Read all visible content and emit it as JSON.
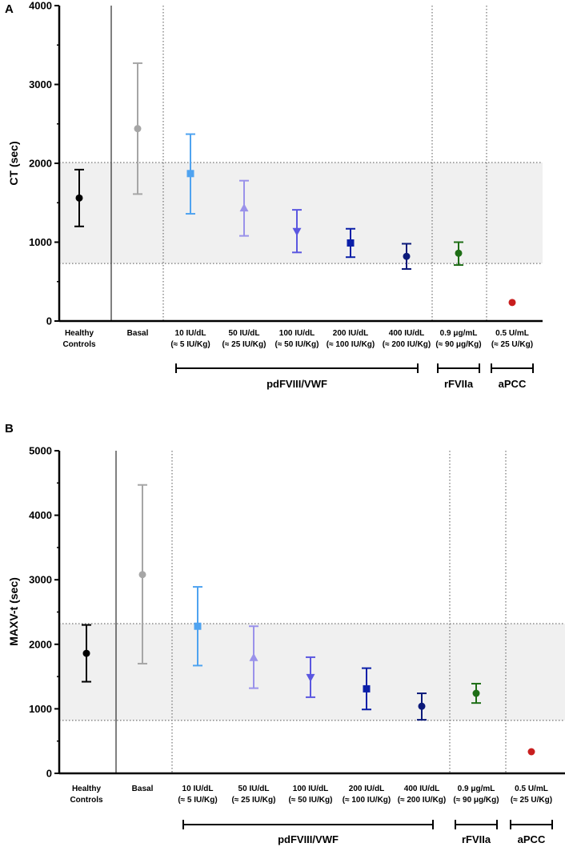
{
  "chart_data": [
    {
      "type": "scatter",
      "panel_label": "A",
      "ylabel": "CT (sec)",
      "ylim": [
        0,
        4000
      ],
      "yticks": [
        0,
        1000,
        2000,
        3000,
        4000
      ],
      "reference_band": [
        730,
        2010
      ],
      "categories": [
        [
          "Healthy",
          "Controls"
        ],
        [
          "Basal"
        ],
        [
          "10 IU/dL",
          "(≈ 5 IU/Kg)"
        ],
        [
          "50 IU/dL",
          "(≈ 25 IU/Kg)"
        ],
        [
          "100 IU/dL",
          "(≈ 50 IU/Kg)"
        ],
        [
          "200 IU/dL",
          "(≈ 100 IU/Kg)"
        ],
        [
          "400 IU/dL",
          "(≈ 200 IU/Kg)"
        ],
        [
          "0.9 μg/mL",
          "(≈ 90 μg/Kg)"
        ],
        [
          "0.5 U/mL",
          "(≈ 25 U/Kg)"
        ]
      ],
      "series": [
        {
          "name": "Healthy Controls",
          "marker": "circle",
          "color": "#000000",
          "value": 1560,
          "low": 1200,
          "high": 1920
        },
        {
          "name": "Basal",
          "marker": "circle",
          "color": "#a6a6a6",
          "value": 2440,
          "low": 1610,
          "high": 3270
        },
        {
          "name": "10 IU/dL",
          "marker": "square",
          "color": "#4fa3f0",
          "value": 1870,
          "low": 1360,
          "high": 2370
        },
        {
          "name": "50 IU/dL",
          "marker": "triangle-up",
          "color": "#9a92ea",
          "value": 1430,
          "low": 1080,
          "high": 1780
        },
        {
          "name": "100 IU/dL",
          "marker": "triangle-down",
          "color": "#5b57e0",
          "value": 1140,
          "low": 870,
          "high": 1410
        },
        {
          "name": "200 IU/dL",
          "marker": "square",
          "color": "#0b1fa8",
          "value": 990,
          "low": 810,
          "high": 1170
        },
        {
          "name": "400 IU/dL",
          "marker": "circle",
          "color": "#0c1a7a",
          "value": 820,
          "low": 660,
          "high": 980
        },
        {
          "name": "rFVIIa",
          "marker": "circle",
          "color": "#1e6e16",
          "value": 860,
          "low": 710,
          "high": 1000
        },
        {
          "name": "aPCC",
          "marker": "circle",
          "color": "#c81e1e",
          "value": 235,
          "low": 210,
          "high": 255
        }
      ],
      "groups": [
        {
          "label": "pdFVIII/VWF",
          "from": 2,
          "to": 6
        },
        {
          "label": "rFVIIa",
          "from": 7,
          "to": 7
        },
        {
          "label": "aPCC",
          "from": 8,
          "to": 8
        }
      ]
    },
    {
      "type": "scatter",
      "panel_label": "B",
      "ylabel": "MAXV-t (sec)",
      "ylim": [
        0,
        5000
      ],
      "yticks": [
        0,
        1000,
        2000,
        3000,
        4000,
        5000
      ],
      "reference_band": [
        820,
        2320
      ],
      "categories": [
        [
          "Healthy",
          "Controls"
        ],
        [
          "Basal"
        ],
        [
          "10 IU/dL",
          "(≈ 5 IU/Kg)"
        ],
        [
          "50 IU/dL",
          "(≈ 25 IU/Kg)"
        ],
        [
          "100 IU/dL",
          "(≈ 50 IU/Kg)"
        ],
        [
          "200 IU/dL",
          "(≈ 100 IU/Kg)"
        ],
        [
          "400 IU/dL",
          "(≈ 200 IU/Kg)"
        ],
        [
          "0.9 μg/mL",
          "(≈ 90 μg/Kg)"
        ],
        [
          "0.5 U/mL",
          "(≈ 25 U/Kg)"
        ]
      ],
      "series": [
        {
          "name": "Healthy Controls",
          "marker": "circle",
          "color": "#000000",
          "value": 1860,
          "low": 1420,
          "high": 2300
        },
        {
          "name": "Basal",
          "marker": "circle",
          "color": "#a6a6a6",
          "value": 3080,
          "low": 1700,
          "high": 4470
        },
        {
          "name": "10 IU/dL",
          "marker": "square",
          "color": "#4fa3f0",
          "value": 2280,
          "low": 1670,
          "high": 2890
        },
        {
          "name": "50 IU/dL",
          "marker": "triangle-up",
          "color": "#9a92ea",
          "value": 1790,
          "low": 1320,
          "high": 2280
        },
        {
          "name": "100 IU/dL",
          "marker": "triangle-down",
          "color": "#5b57e0",
          "value": 1490,
          "low": 1180,
          "high": 1800
        },
        {
          "name": "200 IU/dL",
          "marker": "square",
          "color": "#0b1fa8",
          "value": 1310,
          "low": 990,
          "high": 1630
        },
        {
          "name": "400 IU/dL",
          "marker": "circle",
          "color": "#0c1a7a",
          "value": 1040,
          "low": 830,
          "high": 1240
        },
        {
          "name": "rFVIIa",
          "marker": "circle",
          "color": "#1e6e16",
          "value": 1240,
          "low": 1090,
          "high": 1390
        },
        {
          "name": "aPCC",
          "marker": "circle",
          "color": "#c81e1e",
          "value": 335,
          "low": 305,
          "high": 365
        }
      ],
      "groups": [
        {
          "label": "pdFVIII/VWF",
          "from": 2,
          "to": 6
        },
        {
          "label": "rFVIIa",
          "from": 7,
          "to": 7
        },
        {
          "label": "aPCC",
          "from": 8,
          "to": 8
        }
      ]
    }
  ]
}
